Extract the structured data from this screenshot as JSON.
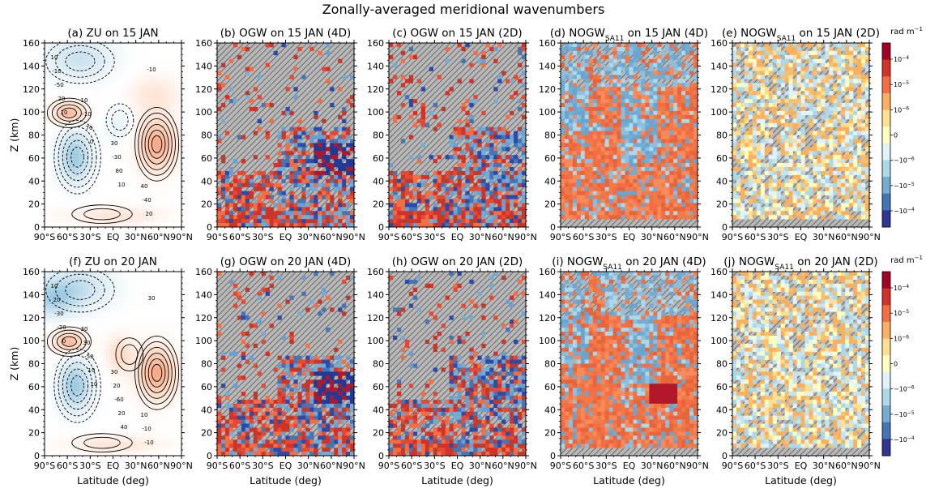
{
  "figure_title": "Zonally-averaged meridional wavenumbers",
  "chart_data": [
    {
      "type": "heatmap",
      "panel": "a",
      "title": "(a) ZU on 15 JAN",
      "xlabel": "",
      "ylabel": "Z (km)",
      "xlim": [
        "90°S",
        "90°N"
      ],
      "ylim": [
        0,
        160
      ],
      "contour_labels": [
        "10",
        "10",
        "30",
        "40",
        "-10",
        "-10",
        "-30",
        "-40",
        "-50",
        "70",
        "80",
        "20",
        "20",
        "0",
        "10",
        "-10",
        "10"
      ]
    },
    {
      "type": "heatmap",
      "panel": "b",
      "title": "(b) OGW on 15 JAN (4D)",
      "xlabel": "",
      "ylabel": "",
      "xlim": [
        "90°S",
        "90°N"
      ],
      "ylim": [
        0,
        160
      ],
      "hatching": true
    },
    {
      "type": "heatmap",
      "panel": "c",
      "title": "(c) OGW on 15 JAN (2D)",
      "xlabel": "",
      "ylabel": "",
      "xlim": [
        "90°S",
        "90°N"
      ],
      "ylim": [
        0,
        160
      ],
      "hatching": true
    },
    {
      "type": "heatmap",
      "panel": "d",
      "title": "(d) NOGW",
      "title_sub": "SA11",
      "title_suffix": " on 15 JAN (4D)",
      "xlabel": "",
      "ylabel": "",
      "xlim": [
        "90°S",
        "90°N"
      ],
      "ylim": [
        0,
        160
      ],
      "hatching": true
    },
    {
      "type": "heatmap",
      "panel": "e",
      "title": "(e) NOGW",
      "title_sub": "SA11",
      "title_suffix": " on 15 JAN (2D)",
      "xlabel": "",
      "ylabel": "",
      "xlim": [
        "90°S",
        "90°N"
      ],
      "ylim": [
        0,
        160
      ],
      "hatching": true
    },
    {
      "type": "heatmap",
      "panel": "f",
      "title": "(f) ZU on 20 JAN",
      "xlabel": "Latitude (deg)",
      "ylabel": "Z (km)",
      "xlim": [
        "90°S",
        "90°N"
      ],
      "ylim": [
        0,
        160
      ],
      "contour_labels": [
        "10",
        "30",
        "30",
        "10",
        "20",
        "30",
        "20",
        "-10",
        "-30",
        "-50",
        "-60",
        "-10",
        "-20",
        "10",
        "20",
        "30",
        "0",
        "10",
        "40"
      ]
    },
    {
      "type": "heatmap",
      "panel": "g",
      "title": "(g) OGW on 20 JAN (4D)",
      "xlabel": "Latitude (deg)",
      "ylabel": "",
      "xlim": [
        "90°S",
        "90°N"
      ],
      "ylim": [
        0,
        160
      ],
      "hatching": true
    },
    {
      "type": "heatmap",
      "panel": "h",
      "title": "(h) OGW on 20 JAN (2D)",
      "xlabel": "Latitude (deg)",
      "ylabel": "",
      "xlim": [
        "90°S",
        "90°N"
      ],
      "ylim": [
        0,
        160
      ],
      "hatching": true
    },
    {
      "type": "heatmap",
      "panel": "i",
      "title": "(i) NOGW",
      "title_sub": "SA11",
      "title_suffix": " on 20 JAN (4D)",
      "xlabel": "Latitude (deg)",
      "ylabel": "",
      "xlim": [
        "90°S",
        "90°N"
      ],
      "ylim": [
        0,
        160
      ],
      "hatching": true
    },
    {
      "type": "heatmap",
      "panel": "j",
      "title": "(j) NOGW",
      "title_sub": "SA11",
      "title_suffix": " on 20 JAN (2D)",
      "xlabel": "Latitude (deg)",
      "ylabel": "",
      "xlim": [
        "90°S",
        "90°N"
      ],
      "ylim": [
        0,
        160
      ],
      "hatching": true
    }
  ],
  "x_ticks": [
    "90°S",
    "60°S",
    "30°S",
    "EQ",
    "30°N",
    "60°N",
    "90°N"
  ],
  "y_ticks": [
    "0",
    "20",
    "40",
    "60",
    "80",
    "100",
    "120",
    "140",
    "160"
  ],
  "colorbar": {
    "label_main": "rad m",
    "label_exp": "−1",
    "ticks": [
      {
        "base": "10",
        "exp": "−4"
      },
      {
        "base": "10",
        "exp": "−5"
      },
      {
        "base": "10",
        "exp": "−6"
      },
      {
        "base": "0",
        "exp": ""
      },
      {
        "base": "−10",
        "exp": "−6"
      },
      {
        "base": "−10",
        "exp": "−5"
      },
      {
        "base": "−10",
        "exp": "−4"
      }
    ],
    "colors": [
      "#a50026",
      "#d73027",
      "#f46d43",
      "#fdae61",
      "#fee090",
      "#ffffbf",
      "#e0f3f8",
      "#abd9e9",
      "#74add1",
      "#4575b4",
      "#313695"
    ]
  }
}
